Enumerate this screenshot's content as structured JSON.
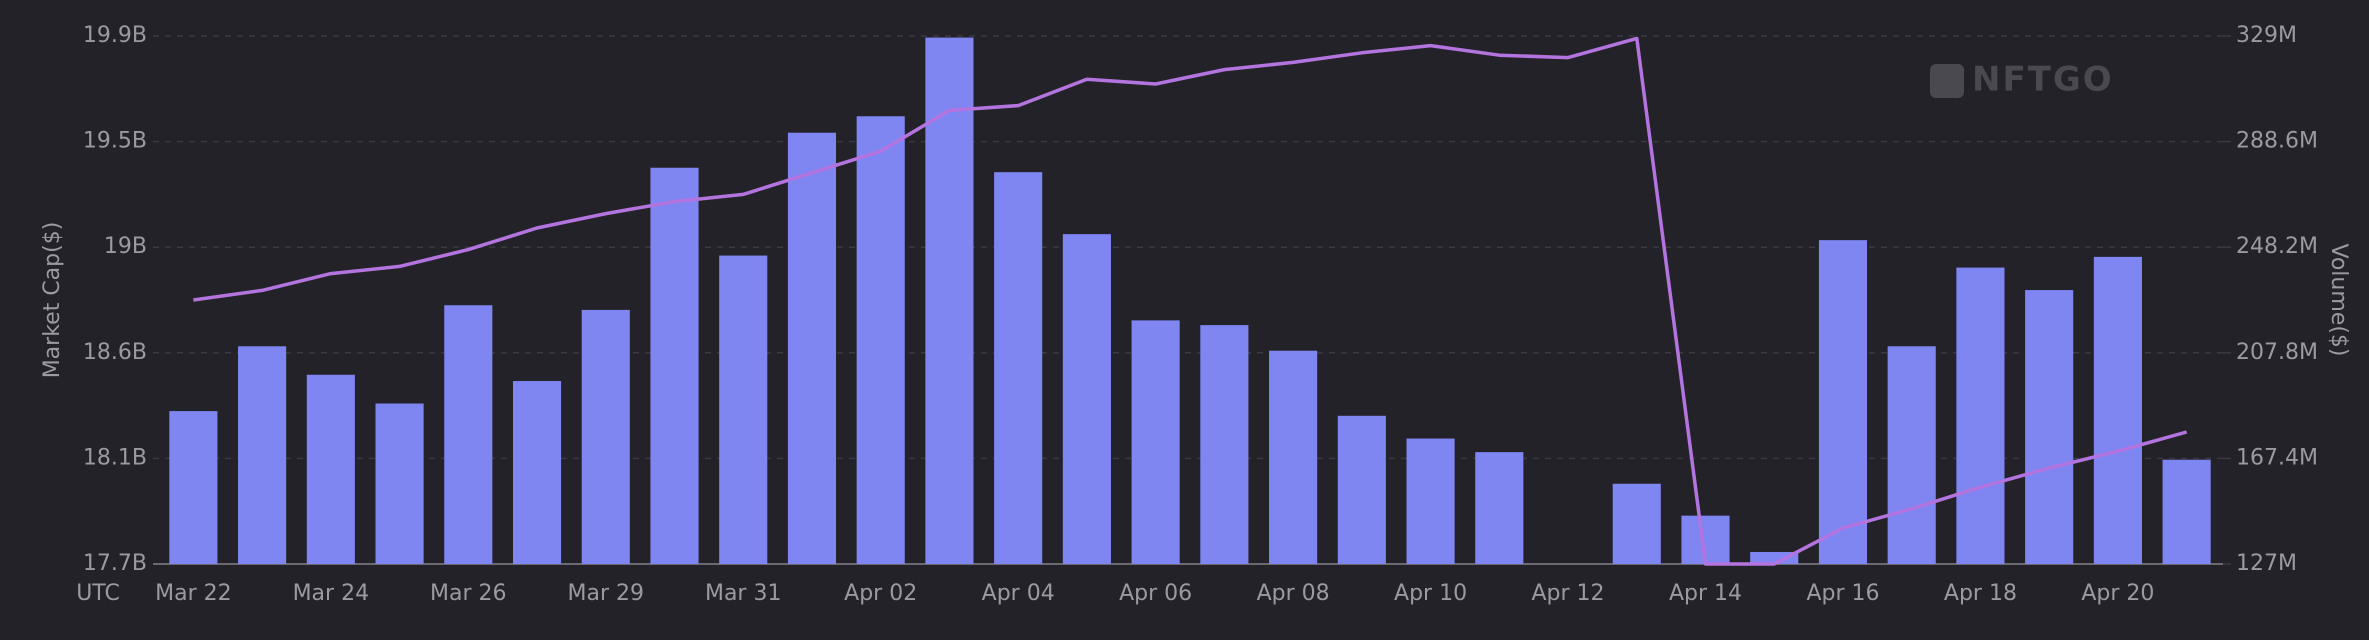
{
  "chart_data": {
    "type": "bar",
    "categories": [
      "Mar 22",
      null,
      "Mar 24",
      null,
      "Mar 26",
      null,
      "Mar 29",
      null,
      "Mar 31",
      null,
      "Apr 02",
      null,
      "Apr 04",
      null,
      "Apr 06",
      null,
      "Apr 08",
      null,
      "Apr 10",
      null,
      "Apr 12",
      null,
      "Apr 14",
      null,
      "Apr 16",
      null,
      "Apr 18",
      null,
      "Apr 20",
      null
    ],
    "x_axis_label": "UTC",
    "ylabel": "Market Cap($)",
    "y2label": "Volume($)",
    "watermark": "NFTGO",
    "ylim": [
      17.7,
      19.9
    ],
    "yticks": [
      {
        "value": 17.7,
        "label": "17.7B"
      },
      {
        "value": 18.14,
        "label": "18.1B"
      },
      {
        "value": 18.58,
        "label": "18.6B"
      },
      {
        "value": 19.02,
        "label": "19B"
      },
      {
        "value": 19.46,
        "label": "19.5B"
      },
      {
        "value": 19.9,
        "label": "19.9B"
      }
    ],
    "y2lim": [
      127,
      329
    ],
    "y2ticks": [
      {
        "value": 127,
        "label": "127M"
      },
      {
        "value": 167.4,
        "label": "167.4M"
      },
      {
        "value": 207.8,
        "label": "207.8M"
      },
      {
        "value": 248.2,
        "label": "248.2M"
      },
      {
        "value": 288.6,
        "label": "288.6M"
      },
      {
        "value": 329,
        "label": "329M"
      }
    ],
    "grid": true,
    "series": [
      {
        "type": "bar",
        "axis": "y2",
        "color": "#7f86f2",
        "values": [
          185.5,
          210.3,
          199.4,
          188.4,
          226,
          197,
          224.2,
          278.6,
          245,
          292,
          298.3,
          328.4,
          276.9,
          253.2,
          220.2,
          218.4,
          208.6,
          183.7,
          175,
          169.8,
          null,
          157.7,
          145.5,
          131.6,
          250.9,
          210.3,
          240.4,
          231.8,
          244.5,
          166.9
        ]
      },
      {
        "type": "line",
        "axis": "y",
        "color": "#b474e0",
        "values": [
          18.8,
          18.84,
          18.91,
          18.94,
          19.01,
          19.1,
          19.16,
          19.21,
          19.24,
          19.33,
          19.42,
          19.59,
          19.61,
          19.72,
          19.7,
          19.76,
          19.79,
          19.83,
          19.86,
          19.82,
          19.81,
          19.89,
          17.7,
          17.7,
          17.85,
          17.93,
          18.02,
          18.1,
          18.17,
          18.25
        ]
      }
    ]
  }
}
